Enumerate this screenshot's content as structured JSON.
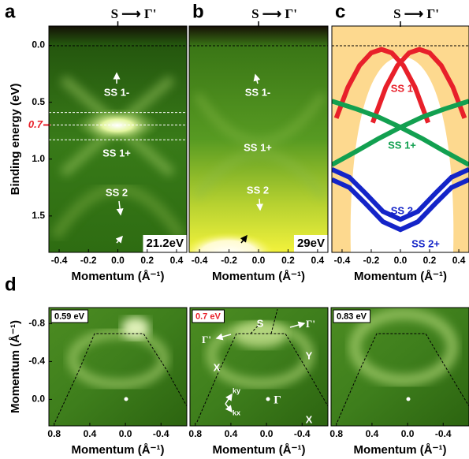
{
  "chart_data": [
    {
      "type": "image",
      "panel_label": "a",
      "header": "S ⟶ Γ'",
      "xlabel": "Momentum (Å⁻¹)",
      "ylabel": "Binding energy (eV)",
      "xlim": [
        -0.47,
        0.47
      ],
      "ylim": [
        -0.17,
        1.82
      ],
      "xticks": [
        -0.4,
        -0.2,
        {
          "value": 0,
          "label": "0.0"
        },
        0.2,
        0.4
      ],
      "yticks": [
        {
          "value": 0,
          "label": "0.0"
        },
        0.5,
        {
          "value": 1,
          "label": "1.0"
        },
        1.5
      ],
      "photon_energy": "21.2eV",
      "marked_energy": {
        "value": 0.7,
        "label": "0.7"
      },
      "marked_color": "#e8202a",
      "cut_energies": [
        0.59,
        0.7,
        0.83
      ],
      "annotations": [
        "SS 1-",
        "SS 1+",
        "SS 2"
      ]
    },
    {
      "type": "image",
      "panel_label": "b",
      "header": "S ⟶ Γ'",
      "xlabel": "Momentum (Å⁻¹)",
      "xlim": [
        -0.47,
        0.47
      ],
      "ylim": [
        -0.17,
        1.82
      ],
      "xticks": [
        -0.4,
        -0.2,
        {
          "value": 0,
          "label": "0.0"
        },
        0.2,
        0.4
      ],
      "photon_energy": "29eV",
      "annotations": [
        "SS 1-",
        "SS 1+",
        "SS 2"
      ]
    },
    {
      "type": "line",
      "panel_label": "c",
      "header": "S ⟶ Γ'",
      "xlabel": "Momentum (Å⁻¹)",
      "xlim": [
        -0.47,
        0.47
      ],
      "ylim": [
        -0.17,
        1.82
      ],
      "xticks": [
        -0.4,
        -0.2,
        {
          "value": 0,
          "label": "0.0"
        },
        0.2,
        0.4
      ],
      "series": [
        {
          "name": "SS 1-",
          "color": "#e8202a",
          "x": [
            -0.44,
            -0.36,
            -0.28,
            -0.2,
            -0.13,
            -0.06,
            0.02,
            0.1,
            0.19,
            null,
            -0.19,
            -0.1,
            -0.02,
            0.06,
            0.13,
            0.2,
            0.28,
            0.36,
            0.44
          ],
          "values": [
            0.64,
            0.368,
            0.177,
            0.066,
            0.035,
            0.066,
            0.177,
            0.368,
            0.68,
            null,
            0.68,
            0.368,
            0.177,
            0.066,
            0.035,
            0.066,
            0.177,
            0.368,
            0.64
          ]
        },
        {
          "name": "SS 1+",
          "color": "#12a050",
          "x": [
            -0.47,
            -0.3,
            -0.15,
            0,
            0.15,
            0.3,
            0.47,
            null,
            -0.47,
            -0.3,
            -0.15,
            0,
            0.15,
            0.3,
            0.47
          ],
          "values": [
            0.49,
            0.56,
            0.63,
            0.72,
            0.82,
            0.93,
            1.05,
            null,
            1.05,
            0.93,
            0.82,
            0.72,
            0.63,
            0.56,
            0.49
          ]
        },
        {
          "name": "SS 2-",
          "color": "#1424c8",
          "x": [
            -0.47,
            -0.35,
            -0.24,
            -0.12,
            0,
            0.12,
            0.24,
            0.35,
            0.47
          ],
          "values": [
            1.09,
            1.16,
            1.3,
            1.46,
            1.53,
            1.46,
            1.3,
            1.16,
            1.09
          ]
        },
        {
          "name": "SS 2+",
          "color": "#1424c8",
          "x": [
            -0.47,
            -0.35,
            -0.24,
            -0.12,
            0,
            0.12,
            0.24,
            0.35,
            0.47
          ],
          "values": [
            1.18,
            1.25,
            1.39,
            1.55,
            1.62,
            1.55,
            1.39,
            1.25,
            1.18
          ]
        }
      ]
    },
    {
      "type": "image",
      "panel_label": "d",
      "energy_label": "0.59 eV",
      "xlabel": "Momentum (Å⁻¹)",
      "ylabel": "Momentum (Å⁻¹)",
      "xlim": [
        0.86,
        -0.69
      ],
      "ylim": [
        -0.97,
        0.28
      ],
      "xticks": [
        0.8,
        0.4,
        {
          "value": 0,
          "label": "0.0"
        },
        -0.4
      ],
      "yticks": [
        -0.8,
        -0.4,
        {
          "value": 0,
          "label": "0.0"
        }
      ]
    },
    {
      "type": "image",
      "energy_label": "0.7 eV",
      "energy_label_color": "#e8202a",
      "xlabel": "Momentum (Å⁻¹)",
      "xlim": [
        0.86,
        -0.69
      ],
      "ylim": [
        -0.97,
        0.28
      ],
      "xticks": [
        0.8,
        0.4,
        {
          "value": 0,
          "label": "0.0"
        },
        -0.4
      ],
      "annotations": [
        "S",
        "Γ'",
        "Γ'",
        "X",
        "Y",
        "Γ",
        "X",
        "ky",
        "kx"
      ]
    },
    {
      "type": "image",
      "energy_label": "0.83 eV",
      "xlabel": "Momentum (Å⁻¹)",
      "xlim": [
        0.86,
        -0.69
      ],
      "ylim": [
        -0.97,
        0.28
      ],
      "xticks": [
        0.8,
        0.4,
        {
          "value": 0,
          "label": "0.0"
        },
        -0.4
      ]
    }
  ]
}
